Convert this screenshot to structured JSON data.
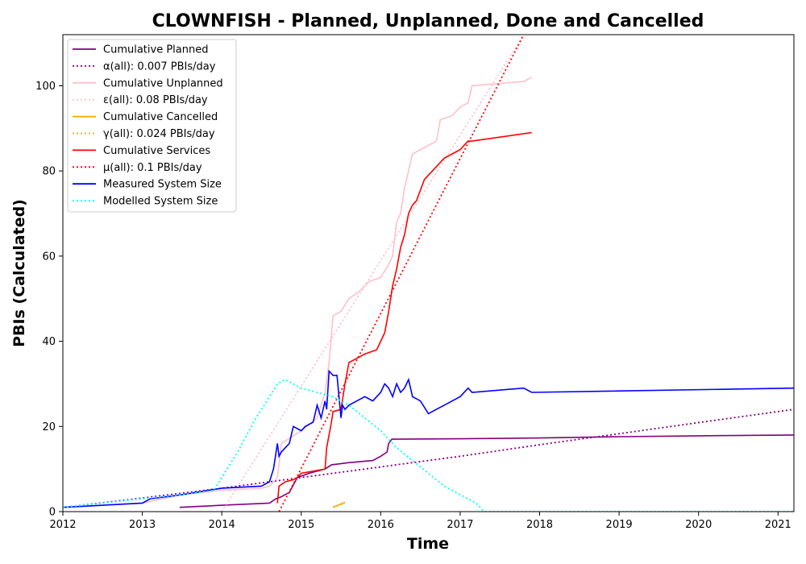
{
  "chart_data": {
    "type": "line",
    "title": "CLOWNFISH - Planned, Unplanned, Done  and Cancelled",
    "xlabel": "Time",
    "ylabel": "PBIs (Calculated)",
    "xlim": [
      2012.0,
      2021.2
    ],
    "ylim": [
      0,
      112
    ],
    "x_ticks": [
      "2012",
      "2013",
      "2014",
      "2015",
      "2016",
      "2017",
      "2018",
      "2019",
      "2020",
      "2021"
    ],
    "y_ticks": [
      "0",
      "20",
      "40",
      "60",
      "80",
      "100"
    ],
    "grid": false,
    "legend_position": "upper-left",
    "series": [
      {
        "name": "Cumulative Planned",
        "color": "#800080",
        "style": "solid",
        "x": [
          2013.47,
          2014.0,
          2014.6,
          2014.68,
          2014.75,
          2014.85,
          2014.95,
          2015.1,
          2015.3,
          2015.38,
          2015.6,
          2015.9,
          2016.0,
          2016.08,
          2016.1,
          2016.14,
          2017.0,
          2018.0,
          2019.0,
          2020.0,
          2021.2
        ],
        "y": [
          1.0,
          1.5,
          2.0,
          3.0,
          3.5,
          4.5,
          8.0,
          9.0,
          10.0,
          11.0,
          11.5,
          12.0,
          13.0,
          14.0,
          16.0,
          17.0,
          17.1,
          17.3,
          17.6,
          17.8,
          18.0
        ]
      },
      {
        "name": "α(all): 0.007 PBIs/day",
        "color": "#800080",
        "style": "dotted",
        "x": [
          2012.0,
          2013.0,
          2014.0,
          2015.0,
          2016.0,
          2017.0,
          2018.0,
          2019.0,
          2020.0,
          2021.2
        ],
        "y": [
          1.0,
          3.2,
          5.5,
          8.0,
          10.5,
          13.0,
          15.7,
          18.3,
          20.9,
          24.0
        ]
      },
      {
        "name": "Cumulative Unplanned",
        "color": "#FFC0CB",
        "style": "solid",
        "x": [
          2012.0,
          2013.0,
          2013.5,
          2014.0,
          2014.5,
          2014.6,
          2014.7,
          2014.75,
          2015.0,
          2015.2,
          2015.3,
          2015.35,
          2015.4,
          2015.45,
          2015.5,
          2015.6,
          2015.75,
          2015.85,
          2016.0,
          2016.1,
          2016.15,
          2016.2,
          2016.25,
          2016.3,
          2016.35,
          2016.4,
          2016.5,
          2016.6,
          2016.7,
          2016.75,
          2016.9,
          2017.0,
          2017.1,
          2017.15,
          2017.8,
          2017.9
        ],
        "y": [
          1.0,
          2.0,
          4.0,
          5.0,
          5.5,
          6.0,
          8.0,
          16.0,
          19.0,
          22.0,
          28.0,
          35.0,
          46.0,
          46.5,
          47.0,
          50.0,
          52.0,
          54.0,
          55.0,
          58.0,
          60.0,
          68.0,
          70.0,
          76.0,
          80.0,
          84.0,
          85.0,
          86.0,
          87.0,
          92.0,
          93.0,
          95.0,
          96.0,
          100.0,
          101.0,
          102.0
        ]
      },
      {
        "name": "ε(all): 0.08 PBIs/day",
        "color": "#FFC0CB",
        "style": "dotted",
        "x": [
          2014.0,
          2017.8
        ],
        "y": [
          0.0,
          112.0
        ]
      },
      {
        "name": "Cumulative Cancelled",
        "color": "#FFA500",
        "style": "solid",
        "x": [
          2015.4,
          2015.55
        ],
        "y": [
          1.0,
          2.2
        ]
      },
      {
        "name": "γ(all): 0.024 PBIs/day",
        "color": "#FFA500",
        "style": "dotted",
        "x": [
          2015.4,
          2015.55
        ],
        "y": [
          1.0,
          2.0
        ]
      },
      {
        "name": "Cumulative Services",
        "color": "#FF0000",
        "style": "solid",
        "x": [
          2014.7,
          2014.72,
          2014.8,
          2014.9,
          2014.95,
          2015.0,
          2015.3,
          2015.32,
          2015.38,
          2015.4,
          2015.5,
          2015.55,
          2015.6,
          2015.7,
          2015.8,
          2015.95,
          2016.0,
          2016.05,
          2016.1,
          2016.15,
          2016.2,
          2016.25,
          2016.3,
          2016.35,
          2016.4,
          2016.45,
          2016.55,
          2016.6,
          2016.75,
          2016.8,
          2016.9,
          2017.0,
          2017.1,
          2017.15,
          2017.9
        ],
        "y": [
          2.0,
          6.0,
          7.0,
          7.5,
          8.0,
          9.0,
          10.0,
          15.0,
          21.0,
          23.5,
          24.0,
          30.0,
          35.0,
          36.0,
          37.0,
          38.0,
          40.0,
          42.0,
          47.0,
          53.0,
          57.0,
          62.0,
          65.0,
          70.0,
          72.0,
          73.0,
          78.0,
          79.0,
          82.0,
          83.0,
          84.0,
          85.0,
          87.0,
          87.0,
          89.0
        ]
      },
      {
        "name": "μ(all): 0.1 PBIs/day",
        "color": "#FF0000",
        "style": "dotted",
        "x": [
          2014.72,
          2017.8
        ],
        "y": [
          0.0,
          112.0
        ]
      },
      {
        "name": "Measured System Size",
        "color": "#0000FF",
        "style": "solid",
        "x": [
          2012.0,
          2013.0,
          2013.1,
          2013.5,
          2014.0,
          2014.5,
          2014.6,
          2014.65,
          2014.7,
          2014.72,
          2014.75,
          2014.8,
          2014.85,
          2014.9,
          2015.0,
          2015.05,
          2015.15,
          2015.2,
          2015.25,
          2015.3,
          2015.32,
          2015.35,
          2015.4,
          2015.45,
          2015.5,
          2015.52,
          2015.55,
          2015.6,
          2015.7,
          2015.8,
          2015.9,
          2016.0,
          2016.05,
          2016.1,
          2016.15,
          2016.2,
          2016.25,
          2016.3,
          2016.35,
          2016.4,
          2016.5,
          2016.6,
          2016.7,
          2016.8,
          2016.9,
          2017.0,
          2017.1,
          2017.15,
          2017.8,
          2017.9,
          2021.2
        ],
        "y": [
          1.0,
          2.0,
          3.0,
          4.0,
          5.5,
          6.0,
          7.0,
          10.0,
          16.0,
          13.0,
          14.0,
          15.0,
          16.0,
          20.0,
          19.0,
          20.0,
          21.0,
          25.0,
          22.0,
          26.0,
          24.0,
          33.0,
          32.0,
          32.0,
          22.0,
          25.0,
          24.0,
          25.0,
          26.0,
          27.0,
          26.0,
          28.0,
          30.0,
          29.0,
          27.0,
          30.0,
          28.0,
          29.0,
          31.0,
          27.0,
          26.0,
          23.0,
          24.0,
          25.0,
          26.0,
          27.0,
          29.0,
          28.0,
          29.0,
          28.0,
          29.0
        ]
      },
      {
        "name": "Modelled System Size",
        "color": "#00FFFF",
        "style": "dotted",
        "x": [
          2012.0,
          2013.0,
          2013.5,
          2013.9,
          2014.0,
          2014.2,
          2014.4,
          2014.6,
          2014.7,
          2014.8,
          2014.9,
          2015.0,
          2015.2,
          2015.4,
          2015.6,
          2015.8,
          2016.0,
          2016.2,
          2016.4,
          2016.6,
          2016.8,
          2017.0,
          2017.2,
          2017.3,
          2018.0,
          2019.0,
          2020.0,
          2021.2
        ],
        "y": [
          1.0,
          3.0,
          4.0,
          5.0,
          8.0,
          14.0,
          21.0,
          27.0,
          30.0,
          31.0,
          30.0,
          29.0,
          28.0,
          27.0,
          25.0,
          22.0,
          19.0,
          15.0,
          12.0,
          9.0,
          6.0,
          4.0,
          2.0,
          0.0,
          0.0,
          0.0,
          0.0,
          0.0
        ]
      }
    ]
  }
}
